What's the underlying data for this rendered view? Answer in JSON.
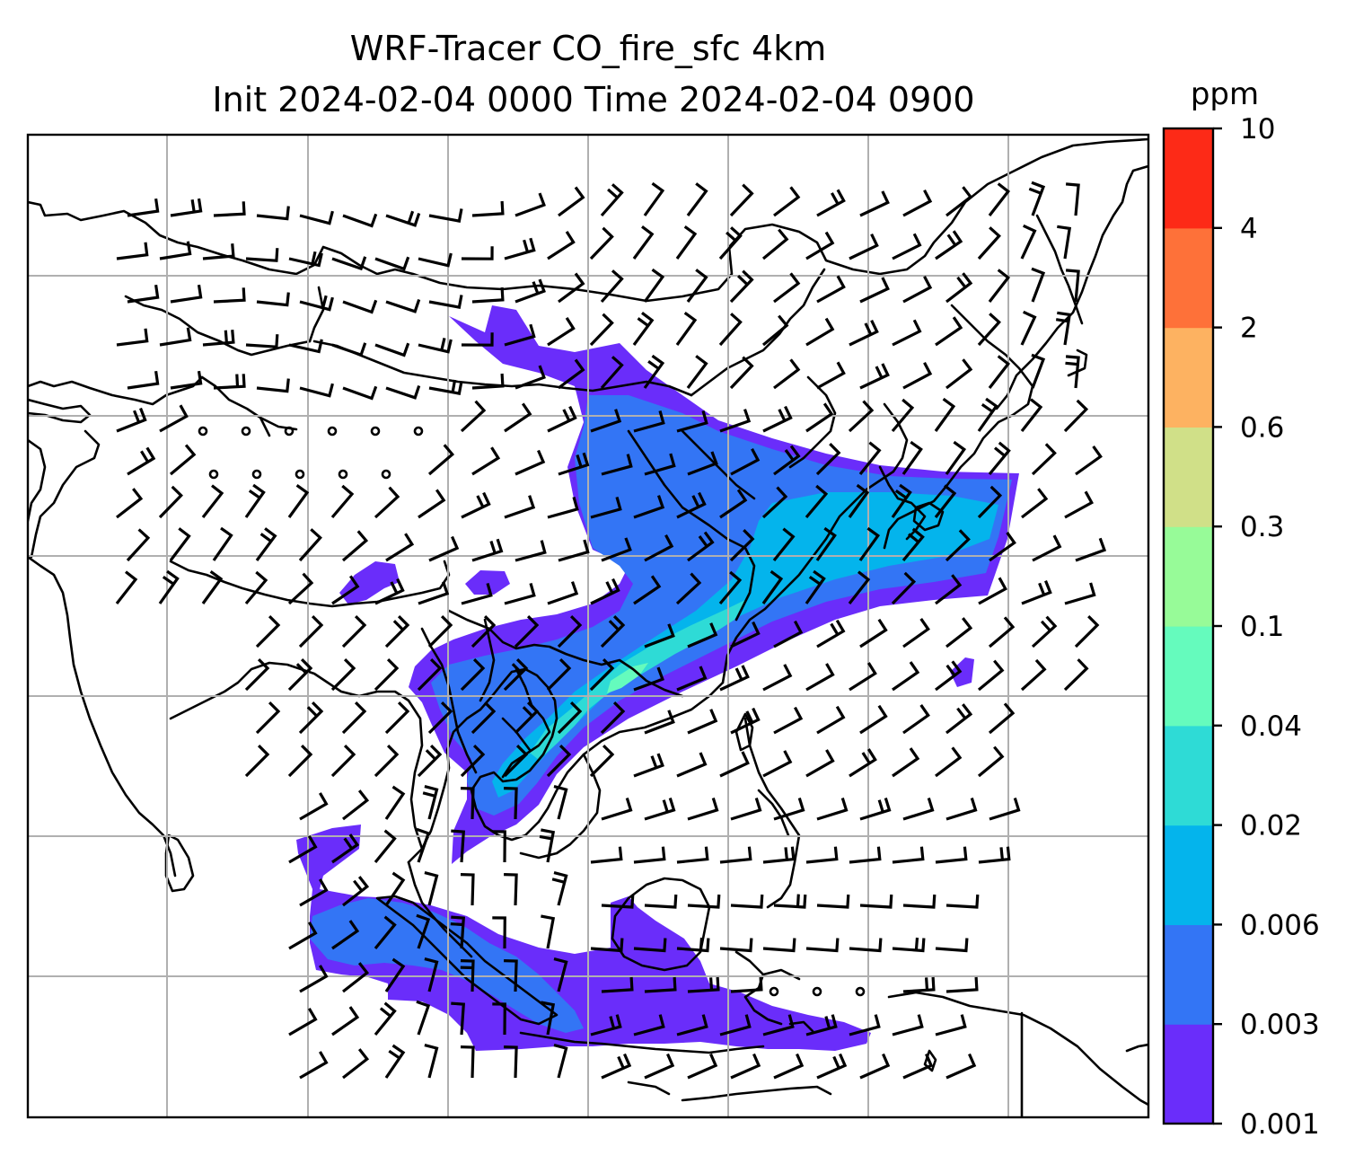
{
  "title_line1": "WRF-Tracer CO_fire_sfc 4km",
  "title_line2": "Init 2024-02-04 0000 Time 2024-02-04 0900",
  "colorbar": {
    "unit": "ppm",
    "levels": [
      "0.001",
      "0.003",
      "0.006",
      "0.02",
      "0.04",
      "0.1",
      "0.3",
      "0.6",
      "2",
      "4",
      "10"
    ],
    "colors": [
      "#6a2dfa",
      "#3375f5",
      "#04b4ec",
      "#2edbd6",
      "#65fbbd",
      "#97fb98",
      "#d0e088",
      "#fdb261",
      "#fe7139",
      "#fd2a17"
    ]
  },
  "wind_barbs": "black",
  "calm_markers": "open-circle"
}
